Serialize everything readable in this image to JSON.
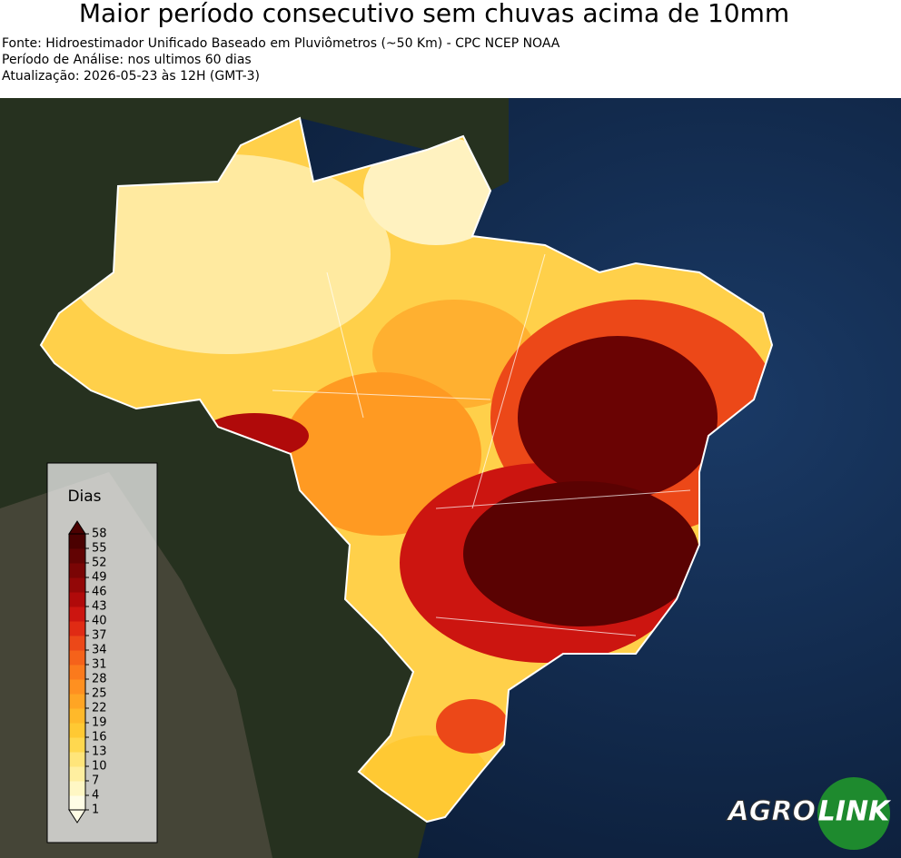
{
  "header": {
    "title": "Maior período consecutivo sem chuvas acima de 10mm",
    "lines": [
      "Fonte: Hidroestimador Unificado Baseado em Pluviômetros (~50 Km) - CPC NCEP NOAA",
      "Período de Análise: nos ultimos 60 dias",
      "Atualização: 2026-05-23 às 12H (GMT-3)"
    ]
  },
  "colorbar": {
    "label": "Dias",
    "ticks": [
      1,
      4,
      7,
      10,
      13,
      16,
      19,
      22,
      25,
      28,
      31,
      34,
      37,
      40,
      43,
      46,
      49,
      52,
      55,
      58
    ],
    "colors": [
      "#fffde6",
      "#fff7c4",
      "#ffefa0",
      "#ffe57a",
      "#ffd84f",
      "#ffc933",
      "#ffb92a",
      "#ffa524",
      "#ff9020",
      "#fb7a1c",
      "#f5621a",
      "#ec4818",
      "#e02b14",
      "#cc1510",
      "#b00a0a",
      "#930707",
      "#7a0505",
      "#620303",
      "#4b0101"
    ]
  },
  "logo": {
    "left": "AGRO",
    "right": "LINK"
  }
}
